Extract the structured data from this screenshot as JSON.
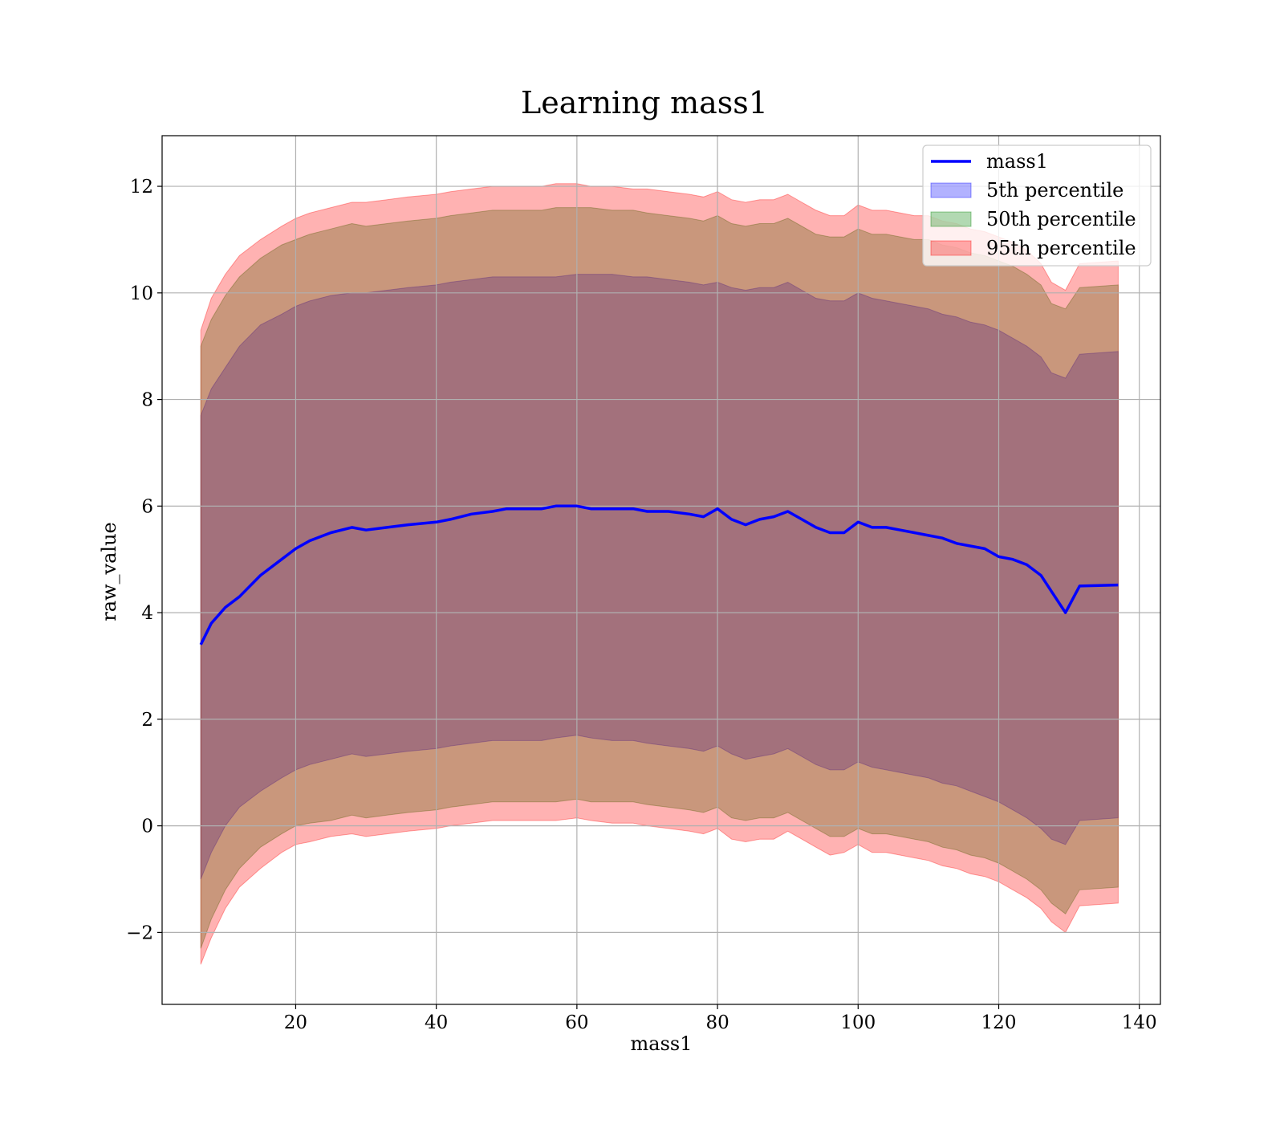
{
  "chart_data": {
    "type": "area",
    "title": "Learning mass1",
    "xlabel": "mass1",
    "ylabel": "raw_value",
    "xlim": [
      1,
      143
    ],
    "ylim": [
      -3.35,
      12.95
    ],
    "x_ticks": [
      20,
      40,
      60,
      80,
      100,
      120,
      140
    ],
    "x_tick_labels": [
      "20",
      "40",
      "60",
      "80",
      "100",
      "120",
      "140"
    ],
    "y_ticks": [
      -2,
      0,
      2,
      4,
      6,
      8,
      10,
      12
    ],
    "y_tick_labels": [
      "−2",
      "0",
      "2",
      "4",
      "6",
      "8",
      "10",
      "12"
    ],
    "grid": true,
    "legend_position": "top-right",
    "legend": [
      {
        "label": "mass1",
        "kind": "line",
        "color": "#0000ff"
      },
      {
        "label": "5th percentile",
        "kind": "patch",
        "color": "#0000ff"
      },
      {
        "label": "50th percentile",
        "kind": "patch",
        "color": "#008000"
      },
      {
        "label": "95th percentile",
        "kind": "patch",
        "color": "#ff0000"
      }
    ],
    "x": [
      6.5,
      8,
      10,
      12,
      15,
      18,
      20,
      22,
      25,
      28,
      30,
      33,
      36,
      40,
      42,
      45,
      48,
      50,
      52,
      55,
      57,
      60,
      62,
      65,
      68,
      70,
      73,
      76,
      78,
      80,
      82,
      84,
      86,
      88,
      90,
      92,
      94,
      96,
      98,
      100,
      102,
      104,
      106,
      108,
      110,
      112,
      114,
      116,
      118,
      120,
      122,
      124,
      126,
      127.5,
      129.5,
      131.5,
      137
    ],
    "series": [
      {
        "name": "mass1",
        "role": "mean",
        "color": "#0000ff",
        "values": [
          3.4,
          3.8,
          4.1,
          4.3,
          4.7,
          5.0,
          5.2,
          5.35,
          5.5,
          5.6,
          5.55,
          5.6,
          5.65,
          5.7,
          5.75,
          5.85,
          5.9,
          5.95,
          5.95,
          5.95,
          6.0,
          6.0,
          5.95,
          5.95,
          5.95,
          5.9,
          5.9,
          5.85,
          5.8,
          5.95,
          5.75,
          5.65,
          5.75,
          5.8,
          5.9,
          5.75,
          5.6,
          5.5,
          5.5,
          5.7,
          5.6,
          5.6,
          5.55,
          5.5,
          5.45,
          5.4,
          5.3,
          5.25,
          5.2,
          5.05,
          5.0,
          4.9,
          4.7,
          4.4,
          4.0,
          4.5,
          4.52
        ]
      },
      {
        "name": "5th percentile",
        "role": "band",
        "color": "#0000ff",
        "upper": [
          7.7,
          8.2,
          8.6,
          9.0,
          9.4,
          9.6,
          9.75,
          9.85,
          9.95,
          10.0,
          10.0,
          10.05,
          10.1,
          10.15,
          10.2,
          10.25,
          10.3,
          10.3,
          10.3,
          10.3,
          10.3,
          10.35,
          10.35,
          10.35,
          10.3,
          10.3,
          10.25,
          10.2,
          10.15,
          10.2,
          10.1,
          10.05,
          10.1,
          10.1,
          10.2,
          10.05,
          9.9,
          9.85,
          9.85,
          10.0,
          9.9,
          9.85,
          9.8,
          9.75,
          9.7,
          9.6,
          9.55,
          9.45,
          9.4,
          9.3,
          9.15,
          9.0,
          8.8,
          8.5,
          8.4,
          8.85,
          8.9
        ],
        "lower": [
          -1.0,
          -0.5,
          0.0,
          0.35,
          0.65,
          0.9,
          1.05,
          1.15,
          1.25,
          1.35,
          1.3,
          1.35,
          1.4,
          1.45,
          1.5,
          1.55,
          1.6,
          1.6,
          1.6,
          1.6,
          1.65,
          1.7,
          1.65,
          1.6,
          1.6,
          1.55,
          1.5,
          1.45,
          1.4,
          1.5,
          1.35,
          1.25,
          1.3,
          1.35,
          1.45,
          1.3,
          1.15,
          1.05,
          1.05,
          1.2,
          1.1,
          1.05,
          1.0,
          0.95,
          0.9,
          0.8,
          0.75,
          0.65,
          0.55,
          0.45,
          0.3,
          0.15,
          -0.05,
          -0.25,
          -0.35,
          0.1,
          0.15
        ]
      },
      {
        "name": "50th percentile",
        "role": "band",
        "color": "#008000",
        "upper": [
          9.0,
          9.5,
          9.95,
          10.3,
          10.65,
          10.9,
          11.0,
          11.1,
          11.2,
          11.3,
          11.25,
          11.3,
          11.35,
          11.4,
          11.45,
          11.5,
          11.55,
          11.55,
          11.55,
          11.55,
          11.6,
          11.6,
          11.6,
          11.55,
          11.55,
          11.5,
          11.45,
          11.4,
          11.35,
          11.45,
          11.3,
          11.25,
          11.3,
          11.3,
          11.4,
          11.25,
          11.1,
          11.05,
          11.05,
          11.2,
          11.1,
          11.1,
          11.05,
          11.0,
          11.0,
          10.9,
          10.85,
          10.75,
          10.7,
          10.6,
          10.5,
          10.35,
          10.15,
          9.8,
          9.7,
          10.1,
          10.15
        ],
        "lower": [
          -2.3,
          -1.75,
          -1.2,
          -0.8,
          -0.4,
          -0.15,
          0.0,
          0.05,
          0.1,
          0.2,
          0.15,
          0.2,
          0.25,
          0.3,
          0.35,
          0.4,
          0.45,
          0.45,
          0.45,
          0.45,
          0.45,
          0.5,
          0.45,
          0.45,
          0.45,
          0.4,
          0.35,
          0.3,
          0.25,
          0.35,
          0.15,
          0.1,
          0.15,
          0.15,
          0.25,
          0.1,
          -0.05,
          -0.2,
          -0.2,
          -0.05,
          -0.15,
          -0.15,
          -0.2,
          -0.25,
          -0.3,
          -0.4,
          -0.45,
          -0.55,
          -0.6,
          -0.7,
          -0.85,
          -1.0,
          -1.2,
          -1.45,
          -1.65,
          -1.2,
          -1.15
        ]
      },
      {
        "name": "95th percentile",
        "role": "band",
        "color": "#ff0000",
        "upper": [
          9.3,
          9.9,
          10.35,
          10.7,
          11.0,
          11.25,
          11.4,
          11.5,
          11.6,
          11.7,
          11.7,
          11.75,
          11.8,
          11.85,
          11.9,
          11.95,
          12.0,
          12.0,
          12.0,
          12.0,
          12.05,
          12.05,
          12.0,
          12.0,
          11.95,
          11.95,
          11.9,
          11.85,
          11.8,
          11.9,
          11.75,
          11.7,
          11.75,
          11.75,
          11.85,
          11.7,
          11.55,
          11.45,
          11.45,
          11.65,
          11.55,
          11.55,
          11.5,
          11.45,
          11.45,
          11.35,
          11.3,
          11.2,
          11.15,
          11.05,
          10.95,
          10.8,
          10.55,
          10.2,
          10.05,
          10.55,
          10.6
        ],
        "lower": [
          -2.6,
          -2.1,
          -1.55,
          -1.15,
          -0.8,
          -0.5,
          -0.35,
          -0.3,
          -0.2,
          -0.15,
          -0.2,
          -0.15,
          -0.1,
          -0.05,
          0.0,
          0.05,
          0.1,
          0.1,
          0.1,
          0.1,
          0.1,
          0.15,
          0.1,
          0.05,
          0.05,
          0.0,
          -0.05,
          -0.1,
          -0.15,
          -0.05,
          -0.25,
          -0.3,
          -0.25,
          -0.25,
          -0.1,
          -0.25,
          -0.4,
          -0.55,
          -0.5,
          -0.35,
          -0.5,
          -0.5,
          -0.55,
          -0.6,
          -0.65,
          -0.75,
          -0.8,
          -0.9,
          -0.95,
          -1.05,
          -1.2,
          -1.35,
          -1.55,
          -1.8,
          -2.0,
          -1.5,
          -1.45
        ]
      }
    ]
  }
}
